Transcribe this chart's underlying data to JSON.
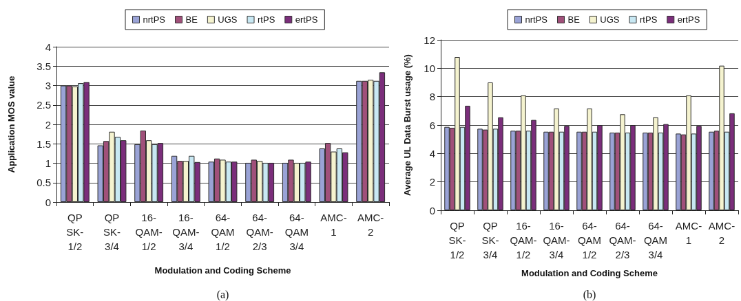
{
  "chart_data": [
    {
      "type": "bar",
      "categories": [
        "QP\nSK-\n1/2",
        "QP\nSK-\n3/4",
        "16-\nQAM-\n1/2",
        "16-\nQAM-\n3/4",
        "64-\nQAM\n1/2",
        "64-\nQAM-\n2/3",
        "64-\nQAM\n3/4",
        "AMC-\n1",
        "AMC-\n2"
      ],
      "xlabel": "Modulation and Coding Scheme",
      "ylabel": "Application MOS value",
      "ylim": [
        0,
        4
      ],
      "yticks": [
        0,
        0.5,
        1,
        1.5,
        2,
        2.5,
        3,
        3.5,
        4
      ],
      "grid": "y",
      "legend": "top",
      "annotations": [
        "(a)"
      ],
      "series": [
        {
          "name": "nrtPS",
          "color": "#9aa3d6",
          "values": [
            3.0,
            1.46,
            1.49,
            1.19,
            1.04,
            1.01,
            1.01,
            1.38,
            3.12
          ]
        },
        {
          "name": "BE",
          "color": "#a0507a",
          "values": [
            3.0,
            1.57,
            1.84,
            1.06,
            1.12,
            1.09,
            1.09,
            1.52,
            3.12
          ]
        },
        {
          "name": "UGS",
          "color": "#f5f3cf",
          "values": [
            2.98,
            1.81,
            1.59,
            1.06,
            1.09,
            1.06,
            1.01,
            1.3,
            3.15
          ]
        },
        {
          "name": "rtPS",
          "color": "#c8e8f3",
          "values": [
            3.06,
            1.68,
            1.49,
            1.19,
            1.04,
            1.01,
            1.01,
            1.38,
            3.12
          ]
        },
        {
          "name": "ertPS",
          "color": "#7b2e7b",
          "values": [
            3.09,
            1.59,
            1.52,
            1.03,
            1.04,
            1.01,
            1.04,
            1.28,
            3.34
          ]
        }
      ]
    },
    {
      "type": "bar",
      "categories": [
        "QP\nSK-\n1/2",
        "QP\nSK-\n3/4",
        "16-\nQAM-\n1/2",
        "16-\nQAM-\n3/4",
        "64-\nQAM\n1/2",
        "64-\nQAM-\n2/3",
        "64-\nQAM\n3/4",
        "AMC-\n1",
        "AMC-\n2"
      ],
      "xlabel": "Modulation and Coding Scheme",
      "ylabel": "Average UL Data Burst usage (%)",
      "ylim": [
        0,
        12
      ],
      "yticks": [
        0,
        2,
        4,
        6,
        8,
        10,
        12
      ],
      "grid": "y",
      "legend": "top",
      "annotations": [
        "(b)"
      ],
      "series": [
        {
          "name": "nrtPS",
          "color": "#9aa3d6",
          "values": [
            5.87,
            5.74,
            5.6,
            5.53,
            5.53,
            5.47,
            5.47,
            5.4,
            5.53
          ]
        },
        {
          "name": "BE",
          "color": "#a0507a",
          "values": [
            5.81,
            5.68,
            5.6,
            5.53,
            5.53,
            5.47,
            5.47,
            5.34,
            5.6
          ]
        },
        {
          "name": "UGS",
          "color": "#f5f3cf",
          "values": [
            10.79,
            9.0,
            8.1,
            7.17,
            7.17,
            6.76,
            6.55,
            8.1,
            10.18
          ]
        },
        {
          "name": "rtPS",
          "color": "#c8e8f3",
          "values": [
            5.87,
            5.74,
            5.6,
            5.53,
            5.53,
            5.47,
            5.47,
            5.4,
            5.53
          ]
        },
        {
          "name": "ertPS",
          "color": "#7b2e7b",
          "values": [
            7.36,
            6.55,
            6.36,
            5.94,
            6.0,
            6.0,
            6.07,
            5.94,
            6.83
          ]
        }
      ]
    }
  ]
}
